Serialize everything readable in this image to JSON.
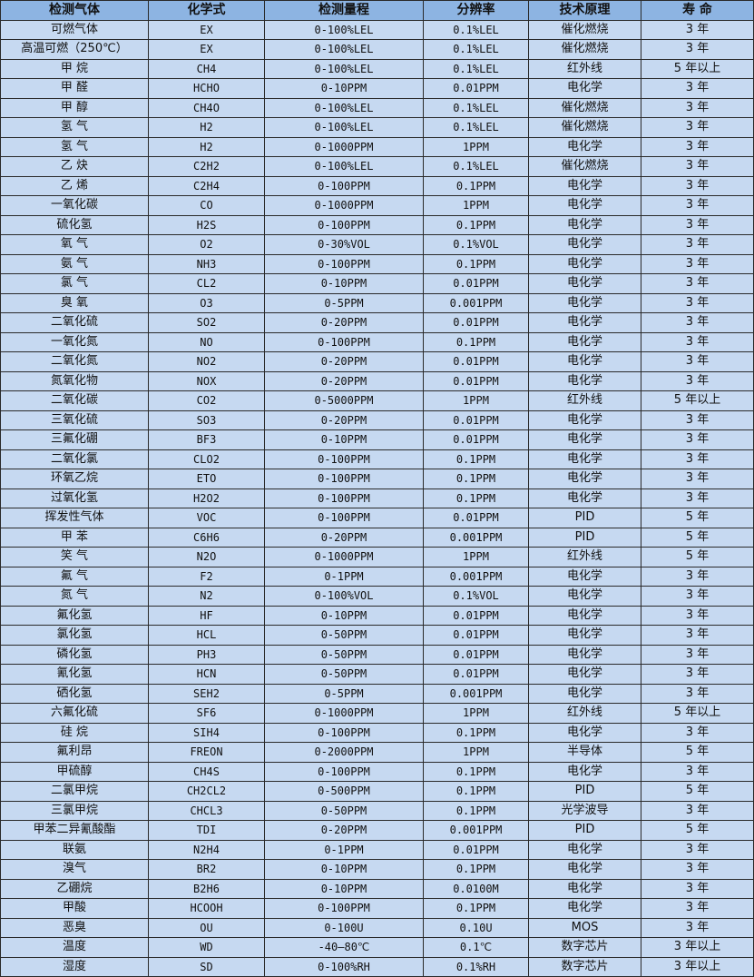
{
  "colors": {
    "header_bg": "#8db4e2",
    "row_bg": "#c6d9f1",
    "border": "#2a2a2a"
  },
  "headers": [
    "检测气体",
    "化学式",
    "检测量程",
    "分辨率",
    "技术原理",
    "寿 命"
  ],
  "rows": [
    [
      "可燃气体",
      "EX",
      "0-100%LEL",
      "0.1%LEL",
      "催化燃烧",
      "3 年"
    ],
    [
      "高温可燃（250℃）",
      "EX",
      "0-100%LEL",
      "0.1%LEL",
      "催化燃烧",
      "3 年"
    ],
    [
      "甲 烷",
      "CH4",
      "0-100%LEL",
      "0.1%LEL",
      "红外线",
      "5 年以上"
    ],
    [
      "甲 醛",
      "HCHO",
      "0-10PPM",
      "0.01PPM",
      "电化学",
      "3 年"
    ],
    [
      "甲 醇",
      "CH4O",
      "0-100%LEL",
      "0.1%LEL",
      "催化燃烧",
      "3 年"
    ],
    [
      "氢 气",
      "H2",
      "0-100%LEL",
      "0.1%LEL",
      "催化燃烧",
      "3 年"
    ],
    [
      "氢 气",
      "H2",
      "0-1000PPM",
      "1PPM",
      "电化学",
      "3 年"
    ],
    [
      "乙 炔",
      "C2H2",
      "0-100%LEL",
      "0.1%LEL",
      "催化燃烧",
      "3 年"
    ],
    [
      "乙 烯",
      "C2H4",
      "0-100PPM",
      "0.1PPM",
      "电化学",
      "3 年"
    ],
    [
      "一氧化碳",
      "CO",
      "0-1000PPM",
      "1PPM",
      "电化学",
      "3 年"
    ],
    [
      "硫化氢",
      "H2S",
      "0-100PPM",
      "0.1PPM",
      "电化学",
      "3 年"
    ],
    [
      "氧 气",
      "O2",
      "0-30%VOL",
      "0.1%VOL",
      "电化学",
      "3 年"
    ],
    [
      "氨 气",
      "NH3",
      "0-100PPM",
      "0.1PPM",
      "电化学",
      "3 年"
    ],
    [
      "氯 气",
      "CL2",
      "0-10PPM",
      "0.01PPM",
      "电化学",
      "3 年"
    ],
    [
      "臭 氧",
      "O3",
      "0-5PPM",
      "0.001PPM",
      "电化学",
      "3 年"
    ],
    [
      "二氧化硫",
      "SO2",
      "0-20PPM",
      "0.01PPM",
      "电化学",
      "3 年"
    ],
    [
      "一氧化氮",
      "NO",
      "0-100PPM",
      "0.1PPM",
      "电化学",
      "3 年"
    ],
    [
      "二氧化氮",
      "NO2",
      "0-20PPM",
      "0.01PPM",
      "电化学",
      "3 年"
    ],
    [
      "氮氧化物",
      "NOX",
      "0-20PPM",
      "0.01PPM",
      "电化学",
      "3 年"
    ],
    [
      "二氧化碳",
      "CO2",
      "0-5000PPM",
      "1PPM",
      "红外线",
      "5 年以上"
    ],
    [
      "三氧化硫",
      "SO3",
      "0-20PPM",
      "0.01PPM",
      "电化学",
      "3 年"
    ],
    [
      "三氟化硼",
      "BF3",
      "0-10PPM",
      "0.01PPM",
      "电化学",
      "3 年"
    ],
    [
      "二氧化氯",
      "CLO2",
      "0-100PPM",
      "0.1PPM",
      "电化学",
      "3 年"
    ],
    [
      "环氧乙烷",
      "ETO",
      "0-100PPM",
      "0.1PPM",
      "电化学",
      "3 年"
    ],
    [
      "过氧化氢",
      "H2O2",
      "0-100PPM",
      "0.1PPM",
      "电化学",
      "3 年"
    ],
    [
      "挥发性气体",
      "VOC",
      "0-100PPM",
      "0.01PPM",
      "PID",
      "5 年"
    ],
    [
      "甲 苯",
      "C6H6",
      "0-20PPM",
      "0.001PPM",
      "PID",
      "5 年"
    ],
    [
      "笑 气",
      "N2O",
      "0-1000PPM",
      "1PPM",
      "红外线",
      "5 年"
    ],
    [
      "氟 气",
      "F2",
      "0-1PPM",
      "0.001PPM",
      "电化学",
      "3 年"
    ],
    [
      "氮 气",
      "N2",
      "0-100%VOL",
      "0.1%VOL",
      "电化学",
      "3 年"
    ],
    [
      "氟化氢",
      "HF",
      "0-10PPM",
      "0.01PPM",
      "电化学",
      "3 年"
    ],
    [
      "氯化氢",
      "HCL",
      "0-50PPM",
      "0.01PPM",
      "电化学",
      "3 年"
    ],
    [
      "磷化氢",
      "PH3",
      "0-50PPM",
      "0.01PPM",
      "电化学",
      "3 年"
    ],
    [
      "氰化氢",
      "HCN",
      "0-50PPM",
      "0.01PPM",
      "电化学",
      "3 年"
    ],
    [
      "硒化氢",
      "SEH2",
      "0-5PPM",
      "0.001PPM",
      "电化学",
      "3 年"
    ],
    [
      "六氟化硫",
      "SF6",
      "0-1000PPM",
      "1PPM",
      "红外线",
      "5 年以上"
    ],
    [
      "硅 烷",
      "SIH4",
      "0-100PPM",
      "0.1PPM",
      "电化学",
      "3 年"
    ],
    [
      "氟利昂",
      "FREON",
      "0-2000PPM",
      "1PPM",
      "半导体",
      "5 年"
    ],
    [
      "甲硫醇",
      "CH4S",
      "0-100PPM",
      "0.1PPM",
      "电化学",
      "3 年"
    ],
    [
      "二氯甲烷",
      "CH2CL2",
      "0-500PPM",
      "0.1PPM",
      "PID",
      "5 年"
    ],
    [
      "三氯甲烷",
      "CHCL3",
      "0-50PPM",
      "0.1PPM",
      "光学波导",
      "3 年"
    ],
    [
      "甲苯二异氰酸酯",
      "TDI",
      "0-20PPM",
      "0.001PPM",
      "PID",
      "5 年"
    ],
    [
      "联氨",
      "N2H4",
      "0-1PPM",
      "0.01PPM",
      "电化学",
      "3 年"
    ],
    [
      "溴气",
      "BR2",
      "0-10PPM",
      "0.1PPM",
      "电化学",
      "3 年"
    ],
    [
      "乙硼烷",
      "B2H6",
      "0-10PPM",
      "0.0100M",
      "电化学",
      "3 年"
    ],
    [
      "甲酸",
      "HCOOH",
      "0-100PPM",
      "0.1PPM",
      "电化学",
      "3 年"
    ],
    [
      "恶臭",
      "OU",
      "0-100U",
      "0.10U",
      "MOS",
      "3 年"
    ],
    [
      "温度",
      "WD",
      "-40—80℃",
      "0.1℃",
      "数字芯片",
      "3 年以上"
    ],
    [
      "湿度",
      "SD",
      "0-100%RH",
      "0.1%RH",
      "数字芯片",
      "3 年以上"
    ]
  ]
}
